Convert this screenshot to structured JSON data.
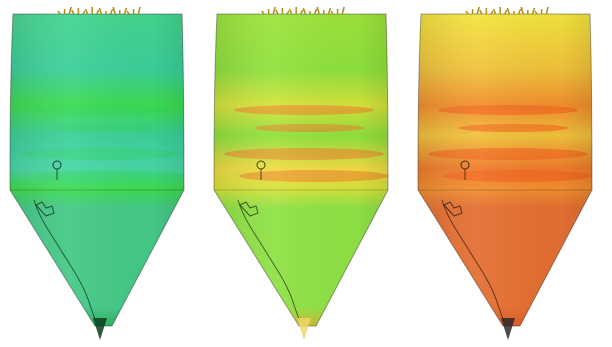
{
  "figure": {
    "background": "#ffffff",
    "panels": [
      {
        "id": "silo-1",
        "icon": "silo-deviation-map",
        "colors": {
          "top": "#45d58d",
          "upper": "#3ccf9a",
          "band": "#3ddc4e",
          "mid": "#49d6a9",
          "bottom": "#44c987",
          "tip": "#1c9a45",
          "stain": "#2ed65f"
        }
      },
      {
        "id": "silo-2",
        "icon": "silo-deviation-map",
        "colors": {
          "top": "#9ee43a",
          "upper": "#8ee13d",
          "band": "#d7e33a",
          "mid": "#f0dc42",
          "bottom": "#8fe245",
          "tip": "#f2a21f",
          "stain": "#ef7d2d"
        }
      },
      {
        "id": "silo-3",
        "icon": "silo-deviation-map",
        "colors": {
          "top": "#f4e63e",
          "upper": "#f0c23a",
          "band": "#f18e2d",
          "mid": "#ef7b2c",
          "bottom": "#e46f32",
          "tip": "#de4b18",
          "stain": "#f25d1c"
        }
      }
    ]
  }
}
